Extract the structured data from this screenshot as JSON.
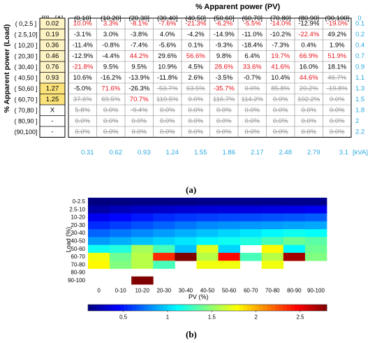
{
  "panel_a": {
    "caption": "(a)",
    "title": "% Apparent power (PV)",
    "ylabel": "% Apparent power (Load)",
    "corner_header": "[0] - [A]",
    "columns": [
      "(0,10]",
      "(10,20]",
      "(20,30]",
      "(30,40]",
      "(40,50]",
      "(50,60]",
      "(60,70]",
      "(70,80]",
      "(80,90]",
      "(90,100]"
    ],
    "right_header": "0",
    "rows": [
      "( 0,2.5 ]",
      "( 2.5,10]",
      "( 10,20 ]",
      "( 20,30 ]",
      "( 30,40 ]",
      "( 40,50 ]",
      "( 50,60 ]",
      "( 60,70 ]",
      "( 70,80 ]",
      "( 80,90 ]",
      "(90,100]"
    ],
    "load_values": [
      "0.02",
      "0.19",
      "0.36",
      "0.46",
      "0.76",
      "0.93",
      "1.27",
      "1.25",
      "X",
      "-",
      "-"
    ],
    "right_values": [
      "0.1",
      "0.2",
      "0.4",
      "0.7",
      "0.9",
      "1.1",
      "1.3",
      "1.5",
      "1.8",
      "2",
      "2.2"
    ],
    "bottom_values": [
      "0.31",
      "0.62",
      "0.93",
      "1.24",
      "1.55",
      "1.86",
      "2.17",
      "2.48",
      "2.79",
      "3.1"
    ],
    "bottom_unit": "[kVA]",
    "cells": [
      [
        "10.0%",
        "3.3%",
        "-8.1%",
        "-7.6%",
        "-21.3%",
        "-6.2%",
        "-5.5%",
        "-14.0%",
        "-12.9%",
        "-19.0%"
      ],
      [
        "-3.1%",
        "3.0%",
        "-3.8%",
        "4.0%",
        "-4.2%",
        "-14.9%",
        "-11.0%",
        "-10.2%",
        "-22.4%",
        "49.2%"
      ],
      [
        "-11.4%",
        "-0.8%",
        "-7.4%",
        "-5.6%",
        "0.1%",
        "-9.3%",
        "-18.4%",
        "-7.3%",
        "0.4%",
        "1.9%"
      ],
      [
        "-12.9%",
        "-4.4%",
        "44.2%",
        "29.6%",
        "56.6%",
        "9.8%",
        "6.4%",
        "19.7%",
        "66.9%",
        "51.9%"
      ],
      [
        "-21.8%",
        "9.5%",
        "9.5%",
        "10.9%",
        "4.5%",
        "28.6%",
        "33.6%",
        "41.6%",
        "16.0%",
        "18.1%"
      ],
      [
        "10.6%",
        "-16.2%",
        "-13.9%",
        "-11.8%",
        "2.6%",
        "-3.5%",
        "-0.7%",
        "10.4%",
        "44.6%",
        "46.7%"
      ],
      [
        "-5.0%",
        "71.6%",
        "-26.3%",
        "-53.7%",
        "63.5%",
        "-35.7%",
        "0.0%",
        "85.8%",
        "20.2%",
        "-19.8%"
      ],
      [
        "37.6%",
        "69.5%",
        "70.7%",
        "110.5%",
        "0.0%",
        "116.7%",
        "114.2%",
        "0.0%",
        "102.2%",
        "0.0%"
      ],
      [
        "5.8%",
        "0.0%",
        "-9.4%",
        "0.0%",
        "0.0%",
        "0.0%",
        "0.0%",
        "0.0%",
        "0.0%",
        "0.0%"
      ],
      [
        "0.0%",
        "0.0%",
        "0.0%",
        "0.0%",
        "0.0%",
        "0.0%",
        "0.0%",
        "0.0%",
        "0.0%",
        "0.0%"
      ],
      [
        "0.0%",
        "0.0%",
        "0.0%",
        "0.0%",
        "0.0%",
        "0.0%",
        "0.0%",
        "0.0%",
        "0.0%",
        "0.0%"
      ]
    ],
    "cell_styles": [
      [
        "r",
        "r",
        "r",
        "r",
        "r",
        "r",
        "r",
        "r",
        "k",
        "r"
      ],
      [
        "k",
        "k",
        "k",
        "k",
        "k",
        "k",
        "k",
        "k",
        "r",
        "k"
      ],
      [
        "k",
        "k",
        "k",
        "k",
        "k",
        "k",
        "k",
        "k",
        "k",
        "k"
      ],
      [
        "k",
        "k",
        "r",
        "k",
        "r",
        "k",
        "k",
        "r",
        "r",
        "r"
      ],
      [
        "r",
        "k",
        "k",
        "k",
        "k",
        "r",
        "r",
        "r",
        "k",
        "k"
      ],
      [
        "k",
        "k",
        "k",
        "k",
        "k",
        "k",
        "k",
        "k",
        "r",
        "g"
      ],
      [
        "k",
        "r",
        "k",
        "g",
        "g",
        "r",
        "g",
        "g",
        "g",
        "g"
      ],
      [
        "g",
        "g",
        "r",
        "g",
        "g",
        "g",
        "g",
        "g",
        "g",
        "g"
      ],
      [
        "g",
        "g",
        "g",
        "g",
        "g",
        "g",
        "g",
        "g",
        "g",
        "g"
      ],
      [
        "g",
        "g",
        "g",
        "g",
        "g",
        "g",
        "g",
        "g",
        "g",
        "g"
      ],
      [
        "g",
        "g",
        "g",
        "g",
        "g",
        "g",
        "g",
        "g",
        "g",
        "g"
      ]
    ],
    "colors": {
      "red": "#e8141c",
      "gray": "#9a9a9a",
      "blue": "#29a9e0",
      "highlight_light": "#fdf3c4",
      "highlight_dark": "#fbe27a"
    }
  },
  "chart_data": {
    "type": "heatmap",
    "caption": "(b)",
    "xlabel": "PV (%)",
    "ylabel": "Load (%)",
    "x_categories": [
      "0",
      "0-10",
      "10-20",
      "20-30",
      "30-40",
      "40-50",
      "50-60",
      "60-70",
      "70-80",
      "80-90",
      "90-100"
    ],
    "y_categories": [
      "0-2.5",
      "2.5-10",
      "10-20",
      "20-30",
      "30-40",
      "40-50",
      "50-60",
      "60-70",
      "70-80",
      "80-90",
      "90-100"
    ],
    "colorbar": {
      "min": 0.1,
      "max": 2.8,
      "ticks": [
        "0.5",
        "1",
        "1.5",
        "2",
        "2.5"
      ],
      "tick_values": [
        0.5,
        1.0,
        1.5,
        2.0,
        2.5
      ],
      "colormap": "jet"
    },
    "values": [
      [
        0.1,
        0.11,
        0.12,
        0.12,
        0.12,
        0.13,
        0.13,
        0.13,
        0.14,
        0.14,
        0.14
      ],
      [
        0.2,
        0.25,
        0.28,
        0.3,
        0.32,
        0.33,
        0.34,
        0.35,
        0.36,
        0.37,
        0.4
      ],
      [
        0.4,
        0.45,
        0.5,
        0.55,
        0.58,
        0.6,
        0.62,
        0.63,
        0.65,
        0.66,
        0.68
      ],
      [
        0.55,
        0.6,
        0.65,
        0.7,
        0.75,
        0.8,
        0.82,
        0.84,
        0.85,
        0.87,
        0.88
      ],
      [
        0.7,
        0.75,
        0.8,
        0.85,
        0.9,
        0.95,
        1.0,
        1.05,
        1.1,
        1.15,
        1.12
      ],
      [
        0.85,
        0.9,
        0.95,
        1.0,
        1.05,
        1.1,
        1.15,
        1.2,
        1.3,
        1.4,
        1.35
      ],
      [
        1.15,
        1.2,
        1.55,
        1.3,
        0.95,
        1.7,
        1.0,
        null,
        1.8,
        1.1,
        1.4
      ],
      [
        1.75,
        1.4,
        1.6,
        2.35,
        2.8,
        1.6,
        2.45,
        1.3,
        1.6,
        2.7,
        1.45
      ],
      [
        1.8,
        1.45,
        1.6,
        1.3,
        null,
        1.75,
        1.75,
        null,
        1.75,
        null,
        null
      ],
      [
        null,
        null,
        null,
        null,
        null,
        null,
        null,
        null,
        null,
        null,
        null
      ],
      [
        null,
        null,
        2.8,
        null,
        null,
        null,
        null,
        null,
        null,
        null,
        null
      ]
    ]
  }
}
